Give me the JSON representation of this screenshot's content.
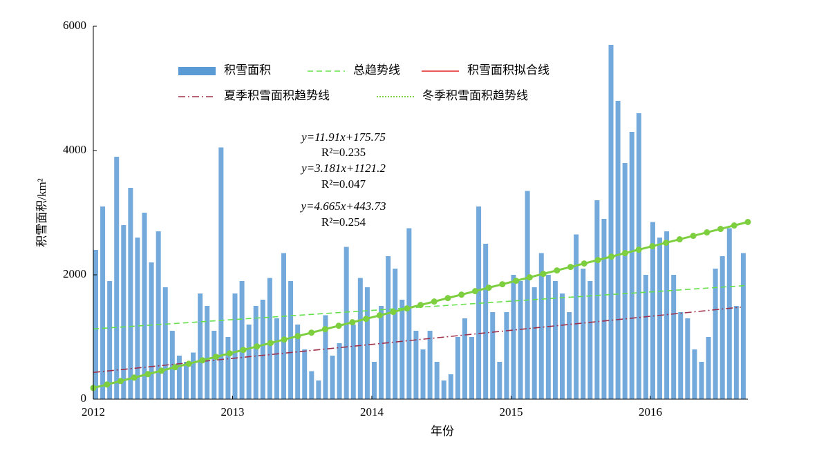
{
  "chart_data": {
    "type": "bar",
    "y_axis_label": "积雪面积/km²",
    "x_axis_label": "年份",
    "xlim": [
      2012,
      2016.7
    ],
    "xticks": [
      2012,
      2013,
      2014,
      2015,
      2016
    ],
    "ylim": [
      0,
      6000
    ],
    "yticks": [
      0,
      2000,
      4000,
      6000
    ],
    "annotations": [
      "y=11.91x+175.75",
      "R²=0.235",
      "y=3.181x+1121.2",
      "R²=0.047",
      "y=4.665x+443.73",
      "R²=0.254"
    ],
    "series": [
      {
        "name": "积雪面积",
        "color": "#5b9bd5",
        "kind": "bar",
        "x": [
          2012.0,
          2012.05,
          2012.1,
          2012.15,
          2012.2,
          2012.25,
          2012.3,
          2012.35,
          2012.4,
          2012.45,
          2012.5,
          2012.55,
          2012.6,
          2012.65,
          2012.7,
          2012.75,
          2012.8,
          2012.85,
          2012.9,
          2012.95,
          2013.0,
          2013.05,
          2013.1,
          2013.15,
          2013.2,
          2013.25,
          2013.3,
          2013.35,
          2013.4,
          2013.45,
          2013.5,
          2013.55,
          2013.6,
          2013.65,
          2013.7,
          2013.75,
          2013.8,
          2013.85,
          2013.9,
          2013.95,
          2014.0,
          2014.05,
          2014.1,
          2014.15,
          2014.2,
          2014.25,
          2014.3,
          2014.35,
          2014.4,
          2014.45,
          2014.5,
          2014.55,
          2014.6,
          2014.65,
          2014.7,
          2014.75,
          2014.8,
          2014.85,
          2014.9,
          2014.95,
          2015.0,
          2015.05,
          2015.1,
          2015.15,
          2015.2,
          2015.25,
          2015.3,
          2015.35,
          2015.4,
          2015.45,
          2015.5,
          2015.55,
          2015.6,
          2015.65,
          2015.7,
          2015.75,
          2015.8,
          2015.85,
          2015.9,
          2015.95,
          2016.0,
          2016.05,
          2016.1,
          2016.15,
          2016.2,
          2016.25,
          2016.3,
          2016.35,
          2016.4,
          2016.45,
          2016.5,
          2016.55,
          2016.6,
          2016.65
        ],
        "values": [
          2400,
          3100,
          1900,
          3900,
          2800,
          3400,
          2600,
          3000,
          2200,
          2700,
          1800,
          1100,
          700,
          600,
          750,
          1700,
          1500,
          1100,
          4050,
          1000,
          1700,
          1900,
          1200,
          1500,
          1600,
          1950,
          1300,
          2350,
          1900,
          1200,
          800,
          450,
          300,
          1350,
          700,
          900,
          2450,
          1200,
          1950,
          1800,
          600,
          1500,
          2300,
          2100,
          1600,
          2750,
          1100,
          800,
          1100,
          600,
          300,
          400,
          1000,
          1300,
          1000,
          3100,
          2500,
          1400,
          600,
          1400,
          2000,
          1900,
          3350,
          1800,
          2350,
          2000,
          1900,
          1700,
          1400,
          2650,
          2100,
          1900,
          3200,
          2900,
          5700,
          4800,
          3800,
          4300,
          4600,
          2000,
          2850,
          2600,
          2700,
          2000,
          1400,
          1300,
          800,
          600,
          1000,
          2100,
          2300,
          2750,
          1500,
          2350
        ]
      },
      {
        "name": "总趋势线",
        "color": "#66e04a",
        "kind": "dashed",
        "x": [
          2012,
          2016.7
        ],
        "values": [
          1130,
          1830
        ]
      },
      {
        "name": "积雪面积拟合线",
        "color": "#e02020",
        "kind": "solid",
        "x": [],
        "values": []
      },
      {
        "name": "夏季积雪面积趋势线",
        "color": "#a0304a",
        "kind": "dashdot",
        "x": [
          2012,
          2016.65
        ],
        "values": [
          430,
          1480
        ]
      },
      {
        "name": "冬季积雪面积趋势线",
        "color": "#7dcf3f",
        "kind": "dotted",
        "x": [
          2012,
          2016.7
        ],
        "values": [
          180,
          2850
        ]
      }
    ]
  }
}
